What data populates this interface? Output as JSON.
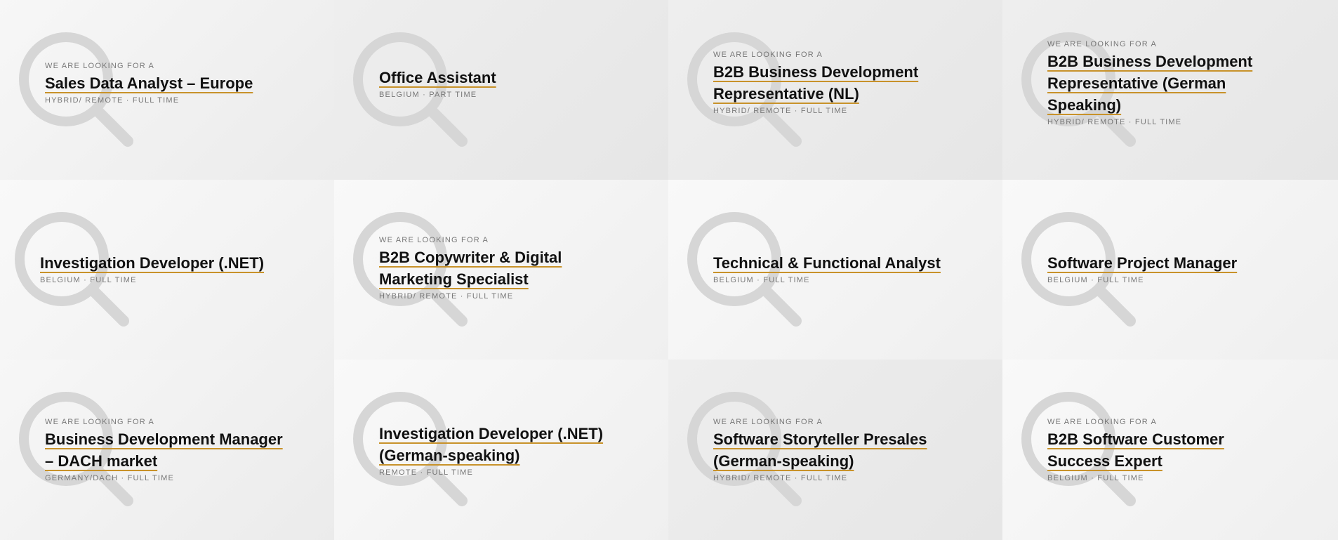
{
  "kicker_text": "WE ARE LOOKING FOR A",
  "colors": {
    "underline": "#c8922a",
    "icon": "#d3d3d3"
  },
  "icon": "search-icon",
  "jobs": [
    {
      "title": "Sales Data Analyst – Europe",
      "meta": "HYBRID/ REMOTE · FULL TIME",
      "kicker": "WE ARE LOOKING FOR A"
    },
    {
      "title": "Office Assistant",
      "meta": "BELGIUM · PART TIME",
      "kicker": ""
    },
    {
      "title": "B2B Business Development Representative (NL)",
      "meta": "HYBRID/ REMOTE · FULL TIME",
      "kicker": "WE ARE LOOKING FOR A"
    },
    {
      "title": "B2B Business Development Representative (German Speaking)",
      "meta": "HYBRID/ REMOTE · FULL TIME",
      "kicker": "WE ARE LOOKING FOR A"
    },
    {
      "title": "Investigation Developer (.NET)",
      "meta": "BELGIUM · FULL TIME",
      "kicker": ""
    },
    {
      "title": "B2B Copywriter & Digital Marketing Specialist",
      "meta": "HYBRID/ REMOTE · FULL TIME",
      "kicker": "WE ARE LOOKING FOR A"
    },
    {
      "title": "Technical & Functional Analyst",
      "meta": "BELGIUM · FULL TIME",
      "kicker": ""
    },
    {
      "title": "Software Project Manager",
      "meta": "BELGIUM · FULL TIME",
      "kicker": ""
    },
    {
      "title": "Business Development Manager – DACH market",
      "meta": "GERMANY/DACH · FULL TIME",
      "kicker": "WE ARE LOOKING FOR A"
    },
    {
      "title": "Investigation Developer (.NET) (German-speaking)",
      "meta": "REMOTE · FULL TIME",
      "kicker": ""
    },
    {
      "title": "Software Storyteller Presales (German-speaking)",
      "meta": "HYBRID/ REMOTE · FULL TIME",
      "kicker": "WE ARE LOOKING FOR A"
    },
    {
      "title": "B2B Software Customer Success Expert",
      "meta": "BELGIUM · FULL TIME",
      "kicker": "WE ARE LOOKING FOR A"
    }
  ]
}
